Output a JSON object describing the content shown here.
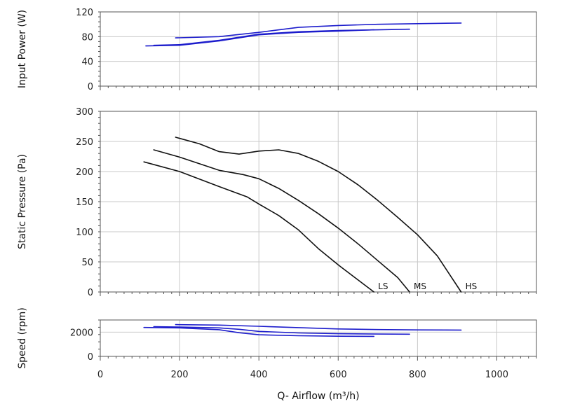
{
  "chart_data": {
    "type": "line",
    "x_axis": {
      "label": "Q- Airflow (m³/h)",
      "range": [
        0,
        1100
      ],
      "ticks": [
        0,
        200,
        400,
        600,
        800,
        1000
      ],
      "tick_labels": [
        "0",
        "200",
        "400",
        "600",
        "800",
        "1000"
      ]
    },
    "grid": true,
    "panels": [
      {
        "id": "power",
        "ylabel": "Input Power (W)",
        "ylim": [
          0,
          120
        ],
        "yticks": [
          0,
          40,
          80,
          120
        ],
        "ytick_labels": [
          "0",
          "40",
          "80",
          "120"
        ],
        "line_color": "#1c1ccc",
        "series": [
          {
            "x": [
              115,
              200,
              300,
              400,
              500,
              600,
              690
            ],
            "y": [
              65,
              66,
              73,
              83,
              87,
              89,
              91
            ]
          },
          {
            "x": [
              135,
              200,
              300,
              400,
              500,
              600,
              700,
              780
            ],
            "y": [
              66,
              67,
              74,
              84,
              88,
              90,
              91,
              92
            ]
          },
          {
            "x": [
              190,
              300,
              400,
              500,
              600,
              700,
              800,
              910
            ],
            "y": [
              78,
              80,
              87,
              95,
              98,
              100,
              101,
              102
            ]
          }
        ]
      },
      {
        "id": "pressure",
        "ylabel": "Static Pressure (Pa)",
        "ylim": [
          0,
          300
        ],
        "yticks": [
          0,
          50,
          100,
          150,
          200,
          250,
          300
        ],
        "ytick_labels": [
          "0",
          "50",
          "100",
          "150",
          "200",
          "250",
          "300"
        ],
        "line_color": "#111111",
        "series": [
          {
            "name": "LS",
            "x": [
              110,
              200,
              300,
              370,
              400,
              450,
              500,
              550,
              600,
              650,
              690
            ],
            "y": [
              216,
              200,
              175,
              158,
              146,
              127,
              103,
              72,
              45,
              20,
              0
            ]
          },
          {
            "name": "MS",
            "x": [
              135,
              200,
              300,
              360,
              400,
              450,
              500,
              550,
              600,
              650,
              700,
              750,
              780
            ],
            "y": [
              236,
              224,
              202,
              195,
              188,
              172,
              152,
              130,
              106,
              80,
              52,
              24,
              0
            ]
          },
          {
            "name": "HS",
            "x": [
              190,
              250,
              300,
              350,
              400,
              450,
              500,
              550,
              600,
              650,
              700,
              750,
              800,
              850,
              910
            ],
            "y": [
              257,
              246,
              233,
              229,
              234,
              236,
              230,
              217,
              200,
              178,
              152,
              124,
              95,
              60,
              0
            ]
          }
        ]
      },
      {
        "id": "speed",
        "ylabel": "Speed (rpm)",
        "ylim": [
          0,
          3000
        ],
        "yticks": [
          0,
          2000
        ],
        "ytick_labels": [
          "0",
          "2000"
        ],
        "line_color": "#1c1ccc",
        "series": [
          {
            "x": [
              110,
              200,
              300,
              350,
              400,
              500,
              600,
              690
            ],
            "y": [
              2380,
              2350,
              2200,
              1950,
              1780,
              1700,
              1660,
              1650
            ]
          },
          {
            "x": [
              135,
              200,
              300,
              350,
              400,
              500,
              600,
              700,
              780
            ],
            "y": [
              2450,
              2420,
              2350,
              2230,
              2060,
              1930,
              1870,
              1840,
              1830
            ]
          },
          {
            "x": [
              190,
              300,
              400,
              500,
              600,
              700,
              800,
              910
            ],
            "y": [
              2620,
              2580,
              2480,
              2370,
              2260,
              2210,
              2180,
              2170
            ]
          }
        ]
      }
    ]
  }
}
